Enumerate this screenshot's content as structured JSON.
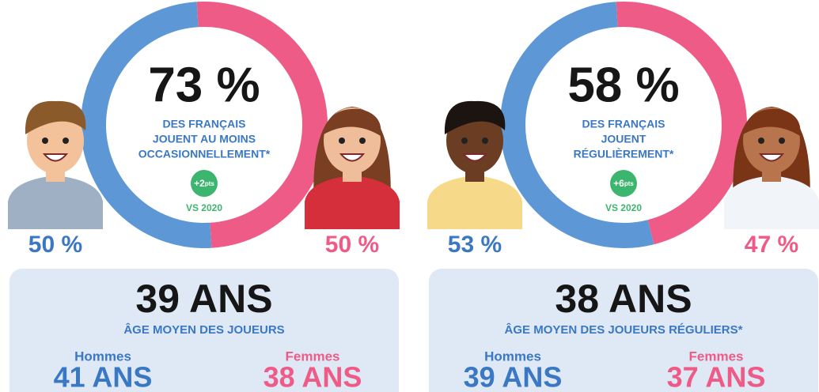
{
  "panels": [
    {
      "headline": "73 %",
      "subtitle": [
        "DES FRANÇAIS",
        "JOUENT AU MOINS",
        "OCCASIONNELLEMENT*"
      ],
      "badge": "+2",
      "badge_unit": "pts",
      "vs": "VS 2020",
      "men": {
        "value": 50,
        "label": "50 %"
      },
      "women": {
        "value": 50,
        "label": "50 %"
      },
      "age": "39 ANS",
      "age_label": "ÂGE MOYEN DES JOUEURS",
      "men_label": "Hommes",
      "men_age": "41 ANS",
      "women_label": "Femmes",
      "women_age": "38 ANS"
    },
    {
      "headline": "58 %",
      "subtitle": [
        "DES FRANÇAIS",
        "JOUENT",
        "RÉGULIÈREMENT*"
      ],
      "badge": "+6",
      "badge_unit": "pts",
      "vs": "VS 2020",
      "men": {
        "value": 53,
        "label": "53 %"
      },
      "women": {
        "value": 47,
        "label": "47 %"
      },
      "age": "38 ANS",
      "age_label": "ÂGE MOYEN DES JOUEURS RÉGULIERS*",
      "men_label": "Hommes",
      "men_age": "39 ANS",
      "women_label": "Femmes",
      "women_age": "37 ANS"
    }
  ]
}
